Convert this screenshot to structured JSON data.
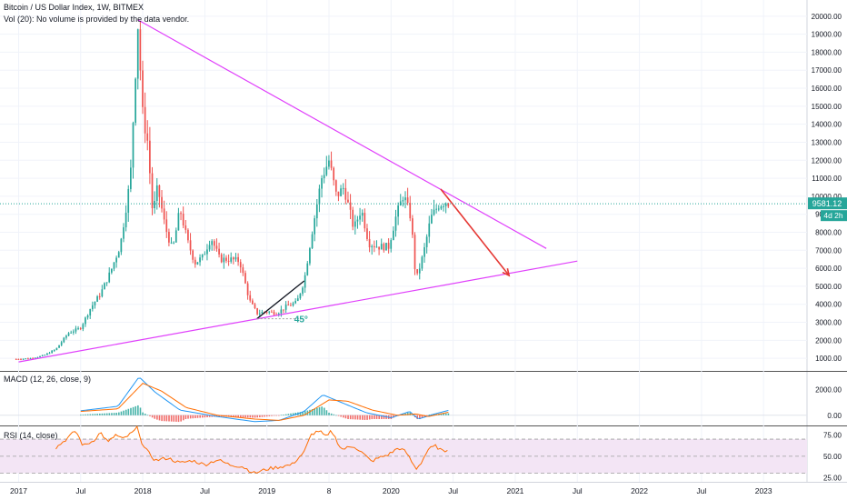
{
  "header": {
    "title": "Bitcoin / US Dollar Index, 1W, BITMEX",
    "volume_note": "Vol (20): No volume is provided by the data vendor."
  },
  "panels": {
    "macd_label": "MACD (12, 26, close, 9)",
    "rsi_label": "RSI (14, close)"
  },
  "price_axis": {
    "ticks": [
      1000,
      2000,
      3000,
      4000,
      5000,
      6000,
      7000,
      8000,
      9000,
      10000,
      11000,
      12000,
      13000,
      14000,
      15000,
      16000,
      17000,
      18000,
      19000,
      20000
    ],
    "tick_labels": [
      "1000.00",
      "2000.00",
      "3000.00",
      "4000.00",
      "5000.00",
      "6000.00",
      "7000.00",
      "8000.00",
      "9000.00",
      "10000.00",
      "11000.00",
      "12000.00",
      "13000.00",
      "14000.00",
      "15000.00",
      "16000.00",
      "17000.00",
      "18000.00",
      "19000.00",
      "20000.00"
    ],
    "current_price_label": "9581.12",
    "countdown_label": "4d 2h",
    "current_price": 9581.12
  },
  "macd_axis": {
    "ticks": [
      0,
      2000
    ],
    "tick_labels": [
      "0.00",
      "2000.00"
    ]
  },
  "rsi_axis": {
    "ticks": [
      25,
      50,
      75
    ],
    "tick_labels": [
      "25.00",
      "50.00",
      "75.00"
    ]
  },
  "time_axis": {
    "labels": [
      {
        "t": 2017.0,
        "label": "2017"
      },
      {
        "t": 2017.5,
        "label": "Jul"
      },
      {
        "t": 2018.0,
        "label": "2018"
      },
      {
        "t": 2018.5,
        "label": "Jul"
      },
      {
        "t": 2019.0,
        "label": "2019"
      },
      {
        "t": 2019.5,
        "label": "8"
      },
      {
        "t": 2020.0,
        "label": "2020"
      },
      {
        "t": 2020.5,
        "label": "Jul"
      },
      {
        "t": 2021.0,
        "label": "2021"
      },
      {
        "t": 2021.5,
        "label": "Jul"
      },
      {
        "t": 2022.0,
        "label": "2022"
      },
      {
        "t": 2022.5,
        "label": "Jul"
      },
      {
        "t": 2023.0,
        "label": "2023"
      }
    ]
  },
  "annotations": {
    "angle_label": "45°"
  },
  "colors": {
    "up": "#26a69a",
    "down": "#ef5350",
    "trendline": "#e040fb",
    "arrow": "#e53935",
    "macd_line": "#2196f3",
    "signal_line": "#ff6d00",
    "rsi_line": "#ff6d00",
    "rsi_band": "#f3e5f5"
  },
  "chart_data": {
    "type": "candlestick",
    "price_range": [
      300,
      20900
    ],
    "x_range": [
      2016.85,
      2023.35
    ],
    "price_anchors": [
      [
        2016.98,
        960
      ],
      [
        2017.1,
        1000
      ],
      [
        2017.2,
        1150
      ],
      [
        2017.3,
        1500
      ],
      [
        2017.4,
        2400
      ],
      [
        2017.5,
        2700
      ],
      [
        2017.58,
        3800
      ],
      [
        2017.66,
        4600
      ],
      [
        2017.74,
        5800
      ],
      [
        2017.82,
        7300
      ],
      [
        2017.9,
        11000
      ],
      [
        2017.96,
        19600
      ],
      [
        2018.0,
        14500
      ],
      [
        2018.04,
        13000
      ],
      [
        2018.08,
        9000
      ],
      [
        2018.12,
        10500
      ],
      [
        2018.18,
        8300
      ],
      [
        2018.24,
        7000
      ],
      [
        2018.3,
        9300
      ],
      [
        2018.36,
        7500
      ],
      [
        2018.42,
        6300
      ],
      [
        2018.48,
        6600
      ],
      [
        2018.55,
        7700
      ],
      [
        2018.62,
        6500
      ],
      [
        2018.7,
        6500
      ],
      [
        2018.78,
        6400
      ],
      [
        2018.86,
        4200
      ],
      [
        2018.92,
        3500
      ],
      [
        2019.0,
        3600
      ],
      [
        2019.08,
        3500
      ],
      [
        2019.16,
        3900
      ],
      [
        2019.24,
        4100
      ],
      [
        2019.3,
        5300
      ],
      [
        2019.36,
        7900
      ],
      [
        2019.44,
        11000
      ],
      [
        2019.5,
        12000
      ],
      [
        2019.56,
        10000
      ],
      [
        2019.62,
        10500
      ],
      [
        2019.7,
        8200
      ],
      [
        2019.76,
        9300
      ],
      [
        2019.82,
        7400
      ],
      [
        2019.9,
        7200
      ],
      [
        2019.98,
        7200
      ],
      [
        2020.04,
        8900
      ],
      [
        2020.1,
        10100
      ],
      [
        2020.16,
        8800
      ],
      [
        2020.2,
        5300
      ],
      [
        2020.26,
        6800
      ],
      [
        2020.32,
        8800
      ],
      [
        2020.38,
        9500
      ],
      [
        2020.44,
        9700
      ],
      [
        2020.47,
        9581
      ]
    ],
    "trendlines": [
      {
        "from": [
          2017.96,
          19800
        ],
        "to": [
          2021.25,
          7100
        ]
      },
      {
        "from": [
          2017.0,
          800
        ],
        "to": [
          2021.5,
          6400
        ]
      }
    ],
    "arrow": {
      "from": [
        2020.4,
        10400
      ],
      "to": [
        2020.95,
        5600
      ]
    },
    "angle_lines": [
      {
        "from": [
          2018.92,
          3200
        ],
        "to": [
          2019.3,
          5300
        ]
      },
      {
        "from": [
          2018.92,
          3200
        ],
        "to": [
          2019.3,
          3200
        ]
      }
    ],
    "macd": {
      "range": [
        -800,
        3400
      ],
      "macd_anchors": [
        [
          2017.5,
          350
        ],
        [
          2017.8,
          700
        ],
        [
          2017.97,
          3000
        ],
        [
          2018.1,
          1800
        ],
        [
          2018.3,
          400
        ],
        [
          2018.6,
          -100
        ],
        [
          2018.9,
          -500
        ],
        [
          2019.1,
          -400
        ],
        [
          2019.3,
          300
        ],
        [
          2019.45,
          1600
        ],
        [
          2019.6,
          1000
        ],
        [
          2019.8,
          200
        ],
        [
          2020.0,
          -200
        ],
        [
          2020.15,
          300
        ],
        [
          2020.22,
          -300
        ],
        [
          2020.35,
          100
        ],
        [
          2020.47,
          400
        ]
      ],
      "signal_anchors": [
        [
          2017.5,
          300
        ],
        [
          2017.8,
          500
        ],
        [
          2018.0,
          2500
        ],
        [
          2018.15,
          1900
        ],
        [
          2018.35,
          600
        ],
        [
          2018.6,
          0
        ],
        [
          2018.9,
          -300
        ],
        [
          2019.1,
          -400
        ],
        [
          2019.3,
          0
        ],
        [
          2019.5,
          1200
        ],
        [
          2019.65,
          1100
        ],
        [
          2019.85,
          400
        ],
        [
          2020.05,
          0
        ],
        [
          2020.2,
          100
        ],
        [
          2020.3,
          -100
        ],
        [
          2020.47,
          250
        ]
      ]
    },
    "rsi": {
      "range": [
        20,
        85
      ],
      "band": [
        30,
        70
      ],
      "anchors": [
        [
          2017.3,
          60
        ],
        [
          2017.4,
          72
        ],
        [
          2017.46,
          80
        ],
        [
          2017.52,
          62
        ],
        [
          2017.6,
          68
        ],
        [
          2017.66,
          78
        ],
        [
          2017.72,
          66
        ],
        [
          2017.78,
          75
        ],
        [
          2017.84,
          70
        ],
        [
          2017.92,
          78
        ],
        [
          2017.96,
          84
        ],
        [
          2018.0,
          62
        ],
        [
          2018.1,
          45
        ],
        [
          2018.2,
          48
        ],
        [
          2018.3,
          42
        ],
        [
          2018.4,
          45
        ],
        [
          2018.5,
          40
        ],
        [
          2018.6,
          46
        ],
        [
          2018.7,
          40
        ],
        [
          2018.8,
          38
        ],
        [
          2018.9,
          30
        ],
        [
          2019.0,
          35
        ],
        [
          2019.2,
          40
        ],
        [
          2019.3,
          55
        ],
        [
          2019.36,
          76
        ],
        [
          2019.42,
          80
        ],
        [
          2019.48,
          72
        ],
        [
          2019.52,
          80
        ],
        [
          2019.6,
          58
        ],
        [
          2019.7,
          62
        ],
        [
          2019.76,
          55
        ],
        [
          2019.84,
          44
        ],
        [
          2019.9,
          48
        ],
        [
          2019.98,
          52
        ],
        [
          2020.06,
          60
        ],
        [
          2020.12,
          55
        ],
        [
          2020.2,
          35
        ],
        [
          2020.24,
          42
        ],
        [
          2020.3,
          58
        ],
        [
          2020.36,
          62
        ],
        [
          2020.42,
          55
        ],
        [
          2020.47,
          60
        ]
      ]
    }
  }
}
